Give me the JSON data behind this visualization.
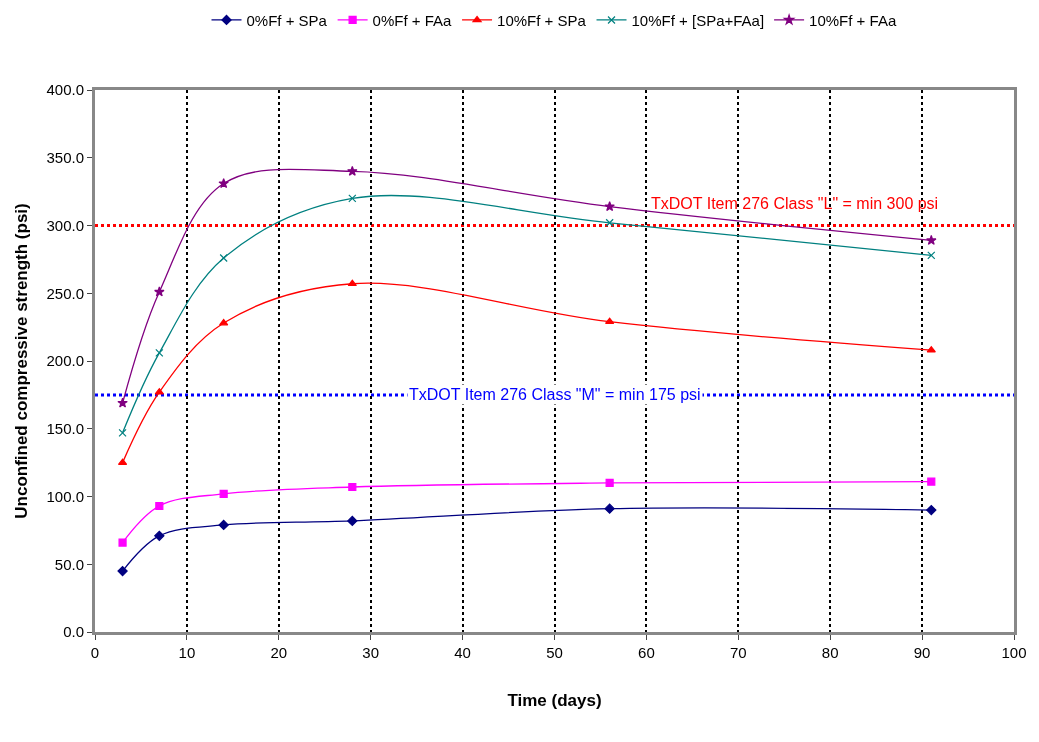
{
  "chart_data": {
    "type": "line",
    "xlabel": "Time (days)",
    "ylabel": "Unconfined compressive strength (psi)",
    "x": [
      3,
      7,
      14,
      28,
      56,
      91
    ],
    "series": [
      {
        "name": "0%Ff + SPa",
        "color": "#000080",
        "marker": "diamond",
        "values": [
          45,
          71,
          79,
          82,
          91,
          90
        ]
      },
      {
        "name": "0%Ff + FAa",
        "color": "#ff00ff",
        "marker": "square",
        "values": [
          66,
          93,
          102,
          107,
          110,
          111
        ]
      },
      {
        "name": "10%Ff + SPa",
        "color": "#ff0000",
        "marker": "triangle",
        "values": [
          125,
          177,
          228,
          257,
          229,
          208
        ]
      },
      {
        "name": "10%Ff + [SPa+FAa]",
        "color": "#008080",
        "marker": "cross",
        "values": [
          147,
          206,
          276,
          320,
          302,
          278
        ]
      },
      {
        "name": "10%Ff + FAa",
        "color": "#800080",
        "marker": "star",
        "values": [
          169,
          251,
          331,
          340,
          314,
          289
        ]
      }
    ],
    "xlim": [
      0,
      100
    ],
    "xticks": [
      0,
      10,
      20,
      30,
      40,
      50,
      60,
      70,
      80,
      90,
      100
    ],
    "ylim": [
      0,
      400
    ],
    "yticks": [
      {
        "value": 0,
        "label": "0.0"
      },
      {
        "value": 50,
        "label": "50.0"
      },
      {
        "value": 100,
        "label": "100.0"
      },
      {
        "value": 150,
        "label": "150.0"
      },
      {
        "value": 200,
        "label": "200.0"
      },
      {
        "value": 250,
        "label": "250.0"
      },
      {
        "value": 300,
        "label": "300.0"
      },
      {
        "value": 350,
        "label": "350.0"
      },
      {
        "value": 400,
        "label": "400.0"
      }
    ],
    "ref_lines": [
      {
        "axis": "y",
        "value": 300,
        "label": "TxDOT Item 276 Class \"L\" = min 300 psi",
        "color": "#ff0000",
        "line_style": "dotted"
      },
      {
        "axis": "y",
        "value": 175,
        "label": "TxDOT Item 276 Class \"M\" = min 175 psi",
        "color": "#0000ff",
        "line_style": "dotted"
      }
    ],
    "grid": "x",
    "legend": "top"
  }
}
